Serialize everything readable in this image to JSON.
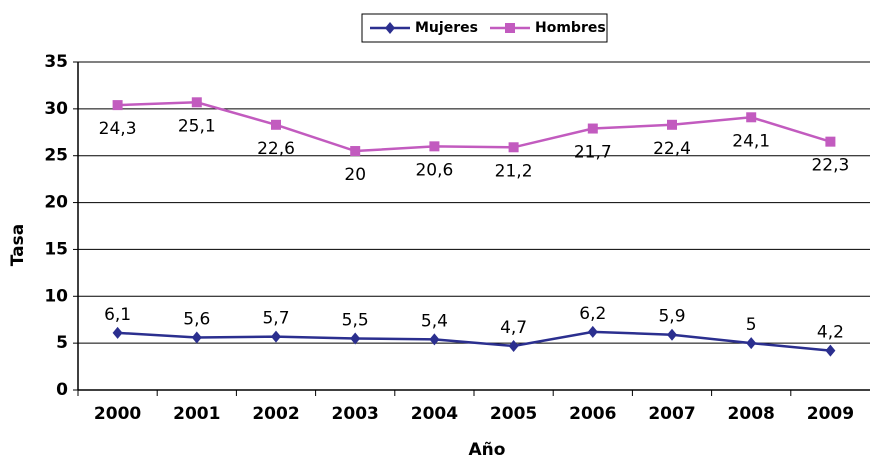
{
  "chart_data": {
    "type": "line",
    "stacked": true,
    "x_label": "Año",
    "y_label": "Tasa",
    "categories": [
      "2000",
      "2001",
      "2002",
      "2003",
      "2004",
      "2005",
      "2006",
      "2007",
      "2008",
      "2009"
    ],
    "series": [
      {
        "name": "Mujeres",
        "color": "#2b2f8f",
        "marker": "diamond",
        "values": [
          6.1,
          5.6,
          5.7,
          5.5,
          5.4,
          4.7,
          6.2,
          5.9,
          5,
          4.2
        ],
        "value_labels": [
          "6,1",
          "5,6",
          "5,7",
          "5,5",
          "5,4",
          "4,7",
          "6,2",
          "5,9",
          "5",
          "4,2"
        ]
      },
      {
        "name": "Hombres",
        "color": "#c25bbf",
        "marker": "square",
        "values": [
          24.3,
          25.1,
          22.6,
          20,
          20.6,
          21.2,
          21.7,
          22.4,
          24.1,
          22.3
        ],
        "value_labels": [
          "24,3",
          "25,1",
          "22,6",
          "20",
          "20,6",
          "21,2",
          "21,7",
          "22,4",
          "24,1",
          "22,3"
        ]
      }
    ],
    "ylim": [
      0,
      35
    ],
    "yticks": [
      0,
      5,
      10,
      15,
      20,
      25,
      30,
      35
    ],
    "grid": true,
    "legend": "top"
  }
}
